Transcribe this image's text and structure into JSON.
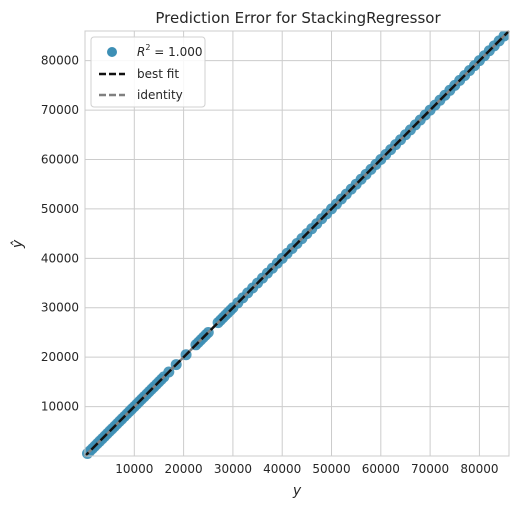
{
  "chart_data": {
    "type": "scatter",
    "title": "Prediction Error for StackingRegressor",
    "xlabel": "y",
    "ylabel": "ŷ",
    "xlim": [
      0,
      86000
    ],
    "ylim": [
      0,
      86000
    ],
    "xticks": [
      10000,
      20000,
      30000,
      40000,
      50000,
      60000,
      70000,
      80000
    ],
    "yticks": [
      10000,
      20000,
      30000,
      40000,
      50000,
      60000,
      70000,
      80000
    ],
    "grid": true,
    "legend_position": "top-left",
    "legend": {
      "r2_label_prefix": "R",
      "r2_label_sup": "2",
      "r2_label_suffix": " = 1.000",
      "best_fit_label": "best fit",
      "identity_label": "identity"
    },
    "points_color": "#3d8fb5",
    "best_fit_color": "#111111",
    "identity_color": "#808080",
    "points_x": [
      500,
      1000,
      1500,
      2000,
      2500,
      3000,
      3500,
      4000,
      4500,
      5000,
      5500,
      6000,
      6500,
      7000,
      7500,
      8000,
      8500,
      9000,
      9500,
      10000,
      10500,
      11000,
      11500,
      12000,
      12500,
      13000,
      13500,
      14000,
      14500,
      15000,
      15500,
      16000,
      17000,
      18500,
      20500,
      22500,
      23000,
      23500,
      24000,
      24500,
      25000,
      27000,
      27500,
      28000,
      28500,
      29000,
      29500,
      30000,
      31000,
      32000,
      33000,
      34000,
      35000,
      36000,
      37000,
      38000,
      39000,
      40000,
      41000,
      42000,
      43000,
      44000,
      45000,
      46000,
      47000,
      48000,
      49000,
      50000,
      51000,
      52000,
      53000,
      54000,
      55000,
      56000,
      57000,
      58000,
      59000,
      60000,
      61000,
      62000,
      63000,
      64000,
      65000,
      66000,
      67000,
      68000,
      69000,
      70000,
      71000,
      72000,
      73000,
      74000,
      75000,
      76000,
      77000,
      78000,
      79000,
      80000,
      81000,
      82000,
      83000,
      84000,
      85000
    ],
    "points_y": [
      500,
      1000,
      1500,
      2000,
      2500,
      3000,
      3500,
      4000,
      4500,
      5000,
      5500,
      6000,
      6500,
      7000,
      7500,
      8000,
      8500,
      9000,
      9500,
      10000,
      10500,
      11000,
      11500,
      12000,
      12500,
      13000,
      13500,
      14000,
      14500,
      15000,
      15500,
      16000,
      17000,
      18500,
      20500,
      22500,
      23000,
      23500,
      24000,
      24500,
      25000,
      27000,
      27500,
      28000,
      28500,
      29000,
      29500,
      30000,
      31000,
      32000,
      33000,
      34000,
      35000,
      36000,
      37000,
      38000,
      39000,
      40000,
      41000,
      42000,
      43000,
      44000,
      45000,
      46000,
      47000,
      48000,
      49000,
      50000,
      51000,
      52000,
      53000,
      54000,
      55000,
      56000,
      57000,
      58000,
      59000,
      60000,
      61000,
      62000,
      63000,
      64000,
      65000,
      66000,
      67000,
      68000,
      69000,
      70000,
      71000,
      72000,
      73000,
      74000,
      75000,
      76000,
      77000,
      78000,
      79000,
      80000,
      81000,
      82000,
      83000,
      84000,
      85000
    ]
  }
}
